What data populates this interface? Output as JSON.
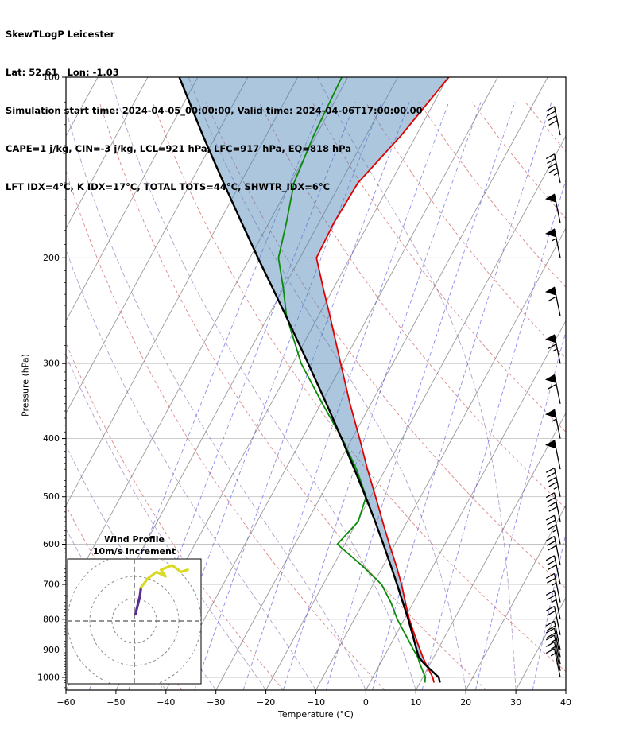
{
  "header": {
    "title": "SkewTLogP Leicester",
    "latlon": "Lat: 52.61   Lon: -1.03",
    "times": "Simulation start time: 2024-04-05_00:00:00, Valid time: 2024-04-06T17:00:00.00",
    "cape_line": "CAPE=1 j/kg, CIN=-3 j/kg, LCL=921 hPa, LFC=917 hPa, EQ=818 hPa",
    "index_line": "LFT IDX=4°C, K IDX=17°C, TOTAL TOTS=44°C, SHWTR_IDX=6°C"
  },
  "chart_data": {
    "type": "skewt-logp",
    "title": "SkewTLogP Leicester",
    "x_axis": {
      "label": "Temperature (°C)",
      "min": -60,
      "max": 40,
      "ticks": [
        -60,
        -50,
        -40,
        -30,
        -20,
        -10,
        0,
        10,
        20,
        30,
        40
      ]
    },
    "y_axis": {
      "label": "Pressure (hPa)",
      "min": 100,
      "max": 1050,
      "scale": "log",
      "ticks": [
        100,
        200,
        300,
        400,
        500,
        600,
        700,
        800,
        900,
        1000
      ]
    },
    "skew_deg_per_decade": 65,
    "sounding": {
      "pressure": [
        1020,
        1000,
        950,
        925,
        900,
        850,
        800,
        750,
        700,
        650,
        600,
        550,
        500,
        450,
        400,
        350,
        300,
        250,
        225,
        200,
        175,
        150,
        125,
        100
      ],
      "temperature": [
        12.8,
        12.0,
        9.2,
        7.8,
        6.5,
        3.8,
        1.0,
        -1.6,
        -4.3,
        -7.5,
        -11.1,
        -14.9,
        -19.0,
        -23.6,
        -28.5,
        -34.2,
        -40.4,
        -47.7,
        -52.0,
        -56.7,
        -57.0,
        -56.5,
        -53.0,
        -49.8
      ],
      "dewpoint": [
        11.0,
        10.5,
        8.0,
        6.8,
        5.2,
        2.0,
        -1.4,
        -4.5,
        -8.3,
        -14.4,
        -21.5,
        -19.8,
        -20.9,
        -25.8,
        -32.0,
        -39.7,
        -48.3,
        -56.4,
        -60.0,
        -64.3,
        -66.5,
        -69.3,
        -70.5,
        -71.2
      ],
      "parcel": [
        14.0,
        13.2,
        8.9,
        7.0,
        5.8,
        3.4,
        0.8,
        -2.1,
        -5.2,
        -8.6,
        -12.3,
        -16.4,
        -21.0,
        -26.2,
        -32.1,
        -38.9,
        -46.9,
        -56.5,
        -62.1,
        -68.4,
        -75.4,
        -83.4,
        -92.7,
        -103.7
      ]
    },
    "wind_barbs": {
      "pressure": [
        125,
        150,
        175,
        200,
        250,
        300,
        350,
        400,
        450,
        500,
        550,
        600,
        650,
        700,
        750,
        800,
        850,
        900,
        925,
        950,
        975,
        1000
      ],
      "speed_ms": [
        40,
        45,
        50,
        55,
        60,
        65,
        60,
        55,
        50,
        45,
        40,
        35,
        30,
        30,
        25,
        25,
        20,
        20,
        20,
        15,
        15,
        15
      ],
      "direction": [
        240,
        235,
        235,
        230,
        230,
        230,
        225,
        225,
        225,
        220,
        220,
        215,
        215,
        210,
        210,
        205,
        205,
        200,
        200,
        195,
        195,
        190
      ]
    },
    "hodograph": {
      "title_line1": "Wind Profile",
      "title_line2": "10m/s increment",
      "rings_ms": [
        10,
        20,
        30
      ],
      "trace_low": [
        [
          0.5,
          3
        ],
        [
          1.5,
          7
        ],
        [
          2.5,
          11
        ],
        [
          3,
          15
        ]
      ],
      "trace_high": [
        [
          3,
          15
        ],
        [
          6,
          19
        ],
        [
          10,
          22
        ],
        [
          14,
          20
        ],
        [
          12,
          23
        ],
        [
          17,
          25
        ],
        [
          21,
          22
        ],
        [
          24,
          23
        ]
      ]
    },
    "background": {
      "isotherm_step_c": 10,
      "dry_adiabats_c": [
        -40,
        -20,
        0,
        20,
        40,
        60,
        80,
        100,
        120,
        140,
        160,
        180
      ],
      "moist_adiabats_c": [
        -40,
        -30,
        -20,
        -10,
        0,
        10,
        20,
        30
      ],
      "mixing_ratios_gkg": [
        0.02,
        0.05,
        0.1,
        0.2,
        0.5,
        1,
        2,
        4,
        8,
        16,
        32
      ]
    },
    "colors": {
      "temperature": "#e00000",
      "dewpoint": "#0b8a0b",
      "parcel": "#000000",
      "fill": "#4682b4",
      "fill_opacity": 0.45,
      "isotherm": "#9a9a9a",
      "grid": "#c4c4c4",
      "dry_adiabat": "#cc5555",
      "moist_adiabat": "#8e6bb0",
      "mixing_ratio": "#5050d8",
      "hodo_low": "#5b2d8e",
      "hodo_high": "#d9d926"
    }
  }
}
